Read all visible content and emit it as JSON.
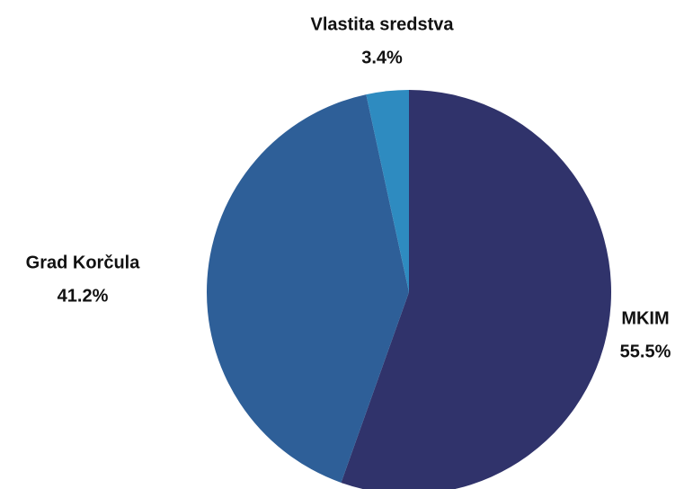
{
  "chart_data": {
    "type": "pie",
    "categories": [
      "MKIM",
      "Grad Korčula",
      "Vlastita sredstva"
    ],
    "values": [
      55.5,
      41.2,
      3.4
    ],
    "value_labels": [
      "55.5%",
      "41.2%",
      "3.4%"
    ],
    "colors": [
      "#30336b",
      "#2e5f98",
      "#2e8bc0"
    ]
  }
}
